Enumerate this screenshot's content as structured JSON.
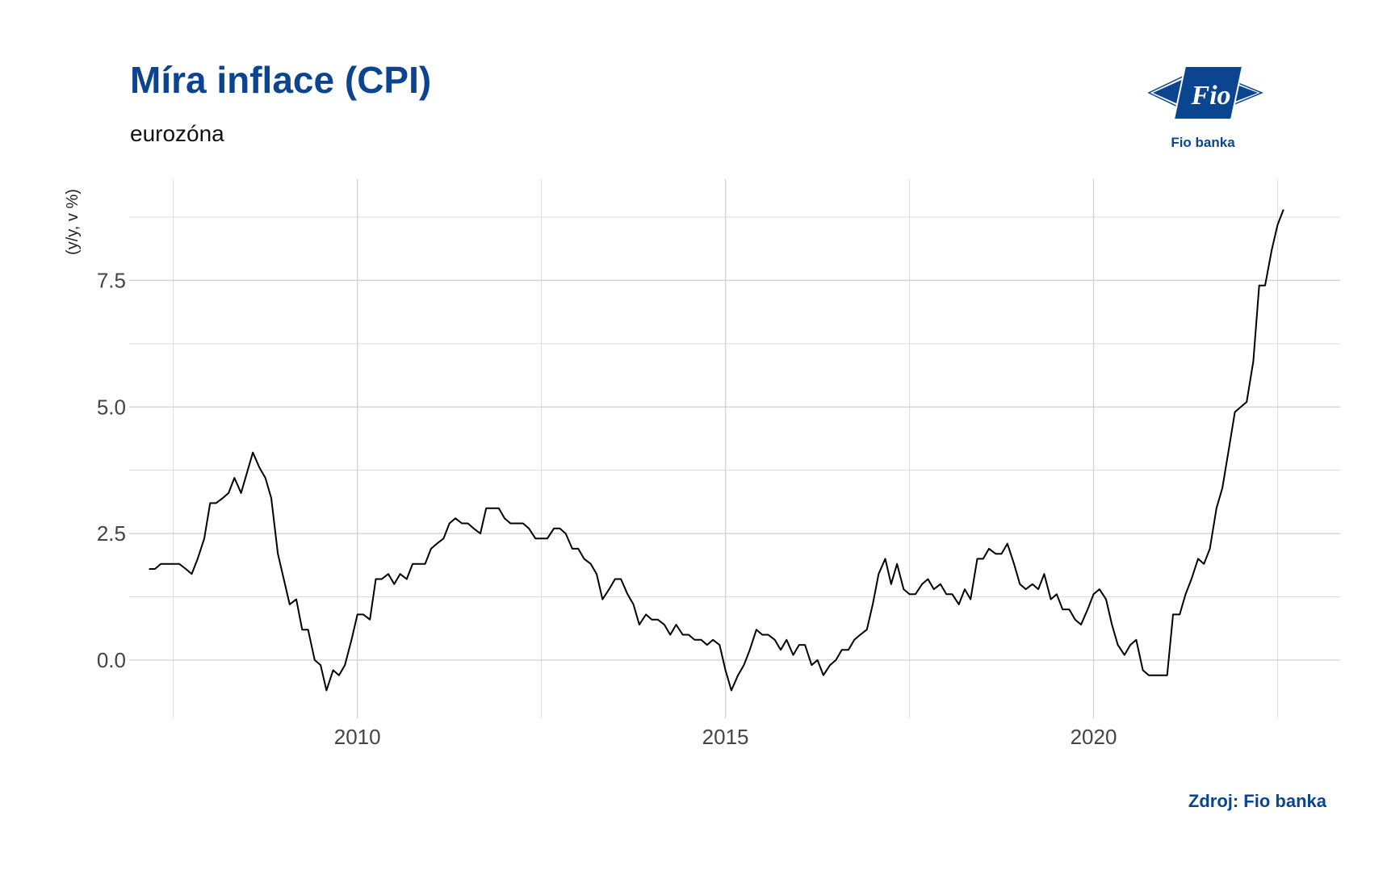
{
  "header": {
    "title": "Míra inflace (CPI)",
    "subtitle": "eurozóna"
  },
  "logo": {
    "mark_text": "Fio",
    "brand_text": "Fio banka",
    "color": "#0b4590"
  },
  "footer": {
    "source": "Zdroj: Fio banka"
  },
  "chart_data": {
    "type": "line",
    "title": "Míra inflace (CPI)",
    "subtitle": "eurozóna",
    "xlabel": "",
    "ylabel": "(y/y, v %)",
    "x_ticks": [
      2010,
      2015,
      2020
    ],
    "y_ticks": [
      0.0,
      2.5,
      5.0,
      7.5
    ],
    "y_tick_labels": [
      "0.0",
      "2.5",
      "5.0",
      "7.5"
    ],
    "xlim": [
      2006.9,
      2023.35
    ],
    "ylim": [
      -1.15,
      9.5
    ],
    "grid": true,
    "line_color": "#000000",
    "series": [
      {
        "values": [
          [
            2007.17,
            1.8
          ],
          [
            2007.25,
            1.8
          ],
          [
            2007.33,
            1.9
          ],
          [
            2007.42,
            1.9
          ],
          [
            2007.5,
            1.9
          ],
          [
            2007.58,
            1.9
          ],
          [
            2007.67,
            1.8
          ],
          [
            2007.75,
            1.7
          ],
          [
            2007.83,
            2.0
          ],
          [
            2007.92,
            2.4
          ],
          [
            2008.0,
            3.1
          ],
          [
            2008.08,
            3.1
          ],
          [
            2008.17,
            3.2
          ],
          [
            2008.25,
            3.3
          ],
          [
            2008.33,
            3.6
          ],
          [
            2008.42,
            3.3
          ],
          [
            2008.5,
            3.7
          ],
          [
            2008.58,
            4.1
          ],
          [
            2008.67,
            3.8
          ],
          [
            2008.75,
            3.6
          ],
          [
            2008.83,
            3.2
          ],
          [
            2008.92,
            2.1
          ],
          [
            2009.0,
            1.6
          ],
          [
            2009.08,
            1.1
          ],
          [
            2009.17,
            1.2
          ],
          [
            2009.25,
            0.6
          ],
          [
            2009.33,
            0.6
          ],
          [
            2009.42,
            0.0
          ],
          [
            2009.5,
            -0.1
          ],
          [
            2009.58,
            -0.6
          ],
          [
            2009.67,
            -0.2
          ],
          [
            2009.75,
            -0.3
          ],
          [
            2009.83,
            -0.1
          ],
          [
            2009.92,
            0.4
          ],
          [
            2010.0,
            0.9
          ],
          [
            2010.08,
            0.9
          ],
          [
            2010.17,
            0.8
          ],
          [
            2010.25,
            1.6
          ],
          [
            2010.33,
            1.6
          ],
          [
            2010.42,
            1.7
          ],
          [
            2010.5,
            1.5
          ],
          [
            2010.58,
            1.7
          ],
          [
            2010.67,
            1.6
          ],
          [
            2010.75,
            1.9
          ],
          [
            2010.83,
            1.9
          ],
          [
            2010.92,
            1.9
          ],
          [
            2011.0,
            2.2
          ],
          [
            2011.08,
            2.3
          ],
          [
            2011.17,
            2.4
          ],
          [
            2011.25,
            2.7
          ],
          [
            2011.33,
            2.8
          ],
          [
            2011.42,
            2.7
          ],
          [
            2011.5,
            2.7
          ],
          [
            2011.58,
            2.6
          ],
          [
            2011.67,
            2.5
          ],
          [
            2011.75,
            3.0
          ],
          [
            2011.83,
            3.0
          ],
          [
            2011.92,
            3.0
          ],
          [
            2012.0,
            2.8
          ],
          [
            2012.08,
            2.7
          ],
          [
            2012.17,
            2.7
          ],
          [
            2012.25,
            2.7
          ],
          [
            2012.33,
            2.6
          ],
          [
            2012.42,
            2.4
          ],
          [
            2012.5,
            2.4
          ],
          [
            2012.58,
            2.4
          ],
          [
            2012.67,
            2.6
          ],
          [
            2012.75,
            2.6
          ],
          [
            2012.83,
            2.5
          ],
          [
            2012.92,
            2.2
          ],
          [
            2013.0,
            2.2
          ],
          [
            2013.08,
            2.0
          ],
          [
            2013.17,
            1.9
          ],
          [
            2013.25,
            1.7
          ],
          [
            2013.33,
            1.2
          ],
          [
            2013.42,
            1.4
          ],
          [
            2013.5,
            1.6
          ],
          [
            2013.58,
            1.6
          ],
          [
            2013.67,
            1.3
          ],
          [
            2013.75,
            1.1
          ],
          [
            2013.83,
            0.7
          ],
          [
            2013.92,
            0.9
          ],
          [
            2014.0,
            0.8
          ],
          [
            2014.08,
            0.8
          ],
          [
            2014.17,
            0.7
          ],
          [
            2014.25,
            0.5
          ],
          [
            2014.33,
            0.7
          ],
          [
            2014.42,
            0.5
          ],
          [
            2014.5,
            0.5
          ],
          [
            2014.58,
            0.4
          ],
          [
            2014.67,
            0.4
          ],
          [
            2014.75,
            0.3
          ],
          [
            2014.83,
            0.4
          ],
          [
            2014.92,
            0.3
          ],
          [
            2015.0,
            -0.2
          ],
          [
            2015.08,
            -0.6
          ],
          [
            2015.17,
            -0.3
          ],
          [
            2015.25,
            -0.1
          ],
          [
            2015.33,
            0.2
          ],
          [
            2015.42,
            0.6
          ],
          [
            2015.5,
            0.5
          ],
          [
            2015.58,
            0.5
          ],
          [
            2015.67,
            0.4
          ],
          [
            2015.75,
            0.2
          ],
          [
            2015.83,
            0.4
          ],
          [
            2015.92,
            0.1
          ],
          [
            2016.0,
            0.3
          ],
          [
            2016.08,
            0.3
          ],
          [
            2016.17,
            -0.1
          ],
          [
            2016.25,
            0.0
          ],
          [
            2016.33,
            -0.3
          ],
          [
            2016.42,
            -0.1
          ],
          [
            2016.5,
            0.0
          ],
          [
            2016.58,
            0.2
          ],
          [
            2016.67,
            0.2
          ],
          [
            2016.75,
            0.4
          ],
          [
            2016.83,
            0.5
          ],
          [
            2016.92,
            0.6
          ],
          [
            2017.0,
            1.1
          ],
          [
            2017.08,
            1.7
          ],
          [
            2017.17,
            2.0
          ],
          [
            2017.25,
            1.5
          ],
          [
            2017.33,
            1.9
          ],
          [
            2017.42,
            1.4
          ],
          [
            2017.5,
            1.3
          ],
          [
            2017.58,
            1.3
          ],
          [
            2017.67,
            1.5
          ],
          [
            2017.75,
            1.6
          ],
          [
            2017.83,
            1.4
          ],
          [
            2017.92,
            1.5
          ],
          [
            2018.0,
            1.3
          ],
          [
            2018.08,
            1.3
          ],
          [
            2018.17,
            1.1
          ],
          [
            2018.25,
            1.4
          ],
          [
            2018.33,
            1.2
          ],
          [
            2018.42,
            2.0
          ],
          [
            2018.5,
            2.0
          ],
          [
            2018.58,
            2.2
          ],
          [
            2018.67,
            2.1
          ],
          [
            2018.75,
            2.1
          ],
          [
            2018.83,
            2.3
          ],
          [
            2018.92,
            1.9
          ],
          [
            2019.0,
            1.5
          ],
          [
            2019.08,
            1.4
          ],
          [
            2019.17,
            1.5
          ],
          [
            2019.25,
            1.4
          ],
          [
            2019.33,
            1.7
          ],
          [
            2019.42,
            1.2
          ],
          [
            2019.5,
            1.3
          ],
          [
            2019.58,
            1.0
          ],
          [
            2019.67,
            1.0
          ],
          [
            2019.75,
            0.8
          ],
          [
            2019.83,
            0.7
          ],
          [
            2019.92,
            1.0
          ],
          [
            2020.0,
            1.3
          ],
          [
            2020.08,
            1.4
          ],
          [
            2020.17,
            1.2
          ],
          [
            2020.25,
            0.7
          ],
          [
            2020.33,
            0.3
          ],
          [
            2020.42,
            0.1
          ],
          [
            2020.5,
            0.3
          ],
          [
            2020.58,
            0.4
          ],
          [
            2020.67,
            -0.2
          ],
          [
            2020.75,
            -0.3
          ],
          [
            2020.83,
            -0.3
          ],
          [
            2020.92,
            -0.3
          ],
          [
            2021.0,
            -0.3
          ],
          [
            2021.08,
            0.9
          ],
          [
            2021.17,
            0.9
          ],
          [
            2021.25,
            1.3
          ],
          [
            2021.33,
            1.6
          ],
          [
            2021.42,
            2.0
          ],
          [
            2021.5,
            1.9
          ],
          [
            2021.58,
            2.2
          ],
          [
            2021.67,
            3.0
          ],
          [
            2021.75,
            3.4
          ],
          [
            2021.83,
            4.1
          ],
          [
            2021.92,
            4.9
          ],
          [
            2022.0,
            5.0
          ],
          [
            2022.08,
            5.1
          ],
          [
            2022.17,
            5.9
          ],
          [
            2022.25,
            7.4
          ],
          [
            2022.33,
            7.4
          ],
          [
            2022.42,
            8.1
          ],
          [
            2022.5,
            8.6
          ],
          [
            2022.58,
            8.9
          ]
        ]
      }
    ]
  }
}
